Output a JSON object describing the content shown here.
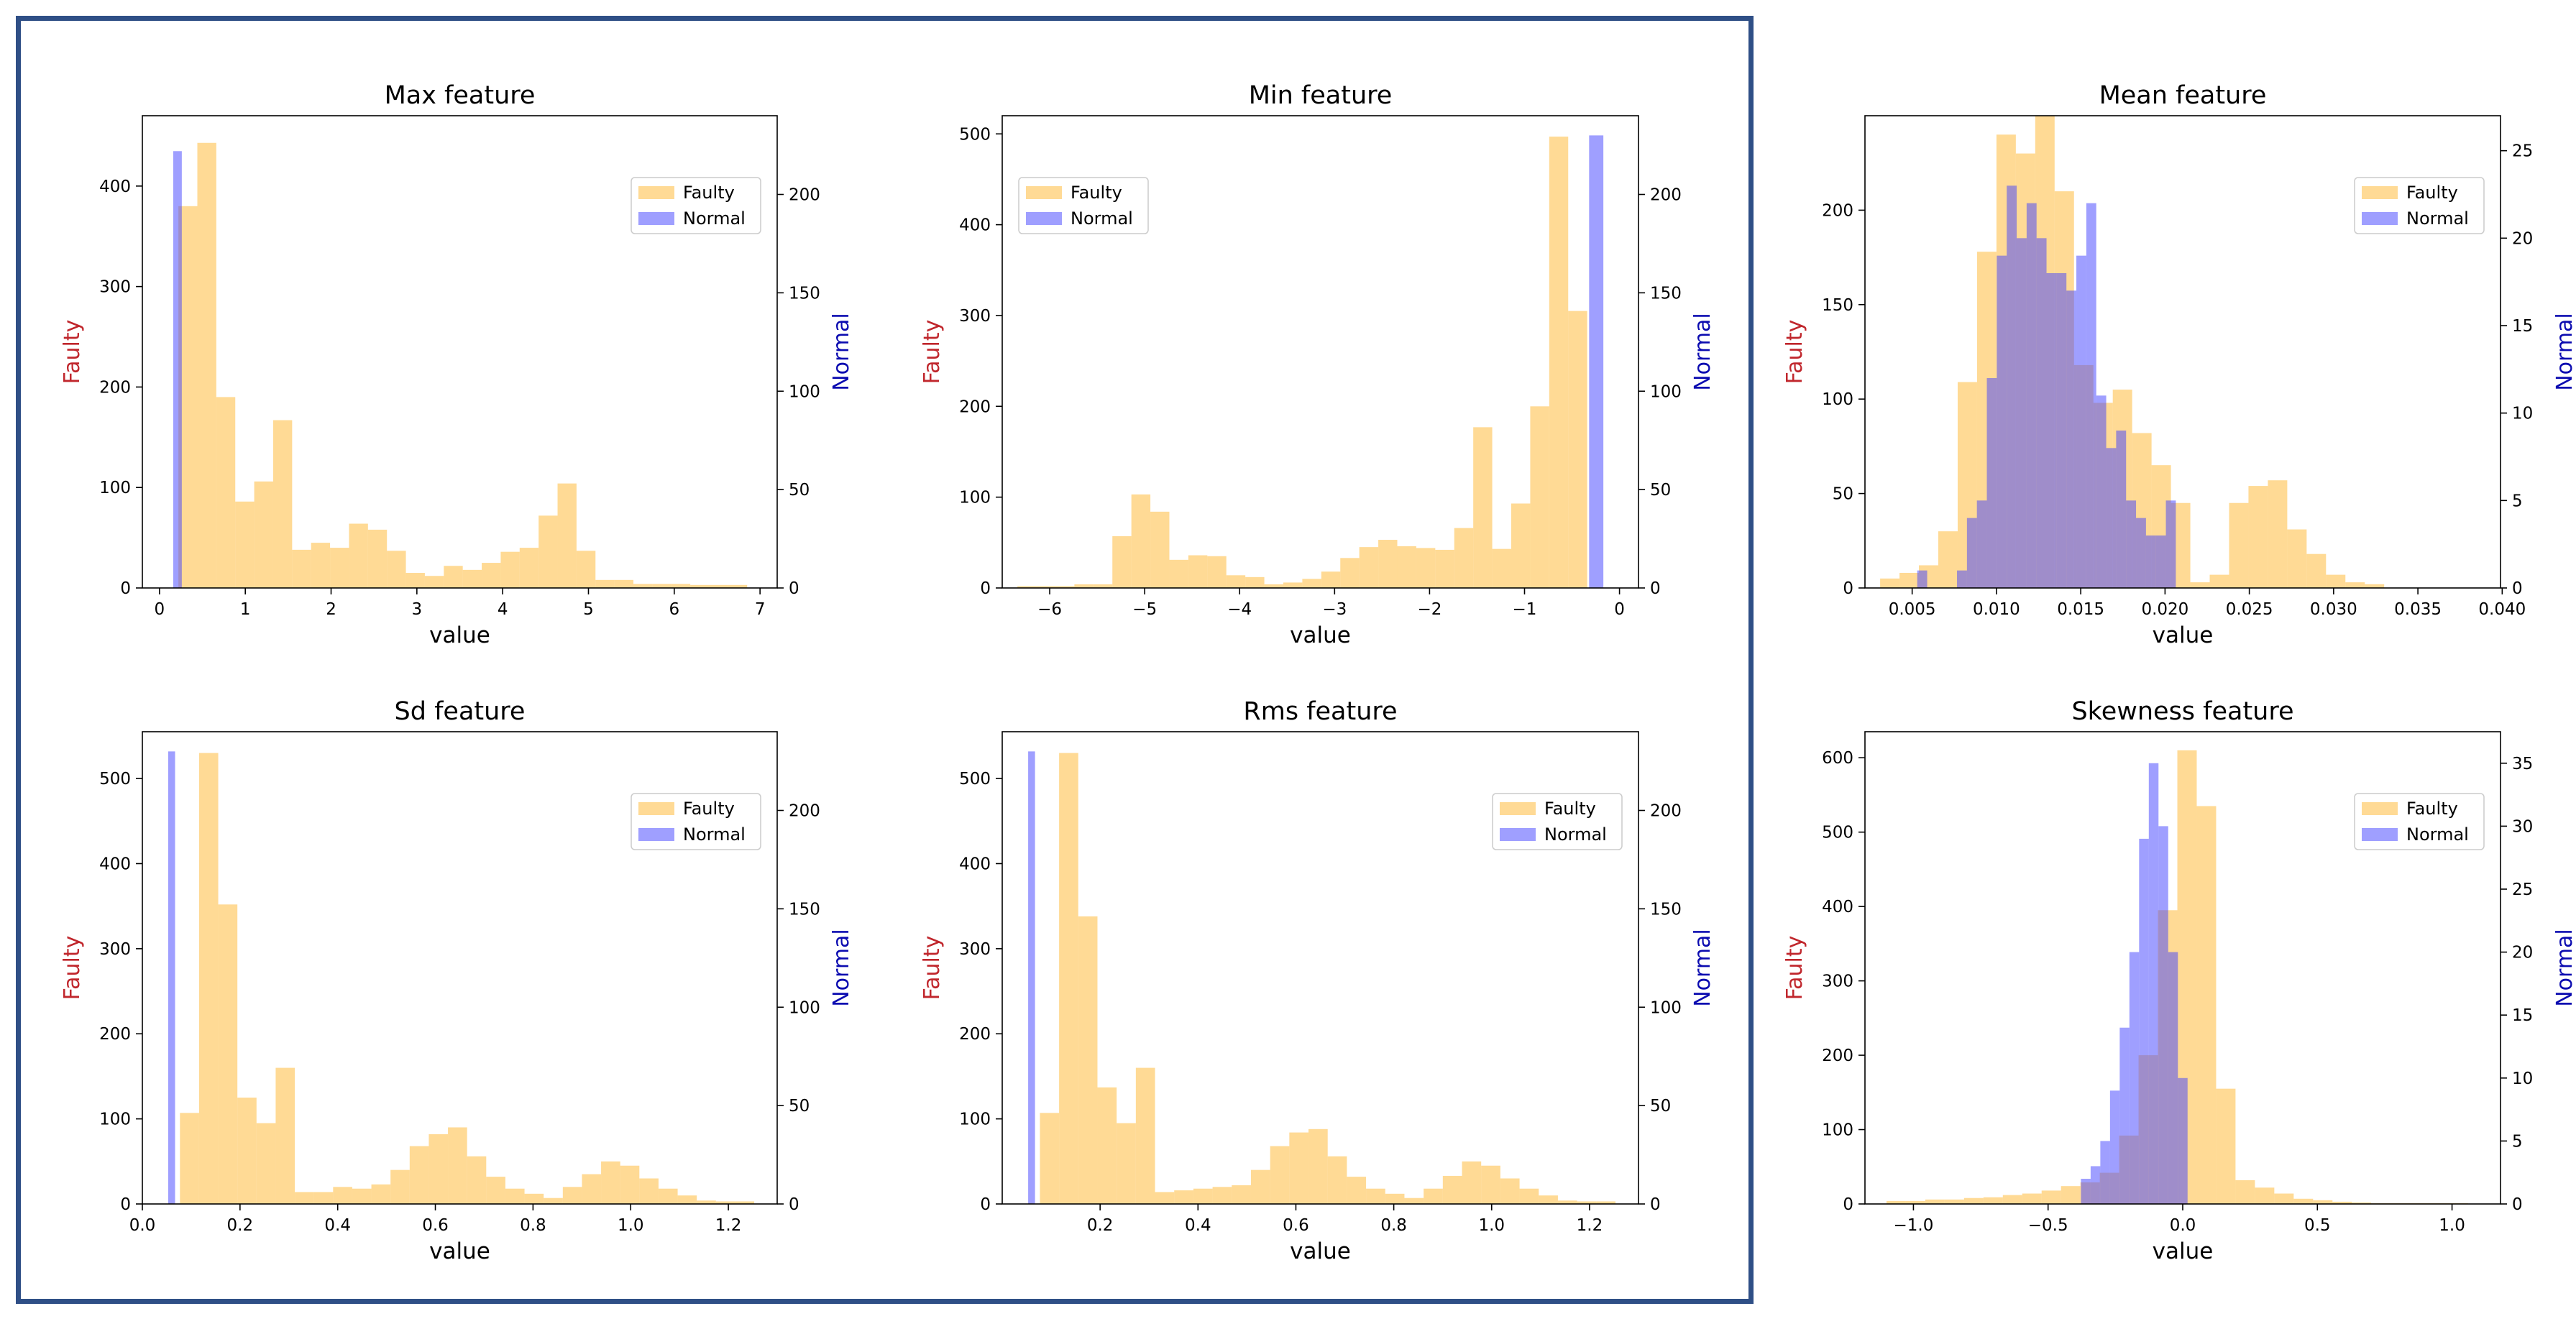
{
  "colors": {
    "faulty": "#ffc14f",
    "normal": "#4040ff",
    "faulty_label": "#c0262c",
    "normal_label": "#0b0bb0",
    "frame": "#2f4f86"
  },
  "legend": {
    "faulty": "Faulty",
    "normal": "Normal"
  },
  "chart_data": [
    {
      "type": "bar",
      "title": "Max feature",
      "xlabel": "value",
      "ylabel_left": "Faulty",
      "ylabel_right": "Normal",
      "legend": "upper right",
      "xlim": [
        -0.2,
        7.2
      ],
      "ylim_left": [
        0,
        470
      ],
      "ylim_right": [
        0,
        240
      ],
      "xticks": [
        0,
        1,
        2,
        3,
        4,
        5,
        6,
        7
      ],
      "yticks_left": [
        0,
        100,
        200,
        300,
        400
      ],
      "yticks_right": [
        0,
        50,
        100,
        150,
        200
      ],
      "faulty": {
        "start": 0.22,
        "width": 0.221,
        "values": [
          380,
          443,
          190,
          86,
          106,
          167,
          38,
          45,
          40,
          64,
          58,
          37,
          15,
          12,
          22,
          18,
          25,
          36,
          40,
          72,
          104,
          37,
          8,
          8,
          4,
          4,
          4,
          3,
          3,
          3
        ]
      },
      "normal": {
        "start": 0.16,
        "width": 0.1,
        "values": [
          222
        ]
      }
    },
    {
      "type": "bar",
      "title": "Min feature",
      "xlabel": "value",
      "ylabel_left": "Faulty",
      "ylabel_right": "Normal",
      "legend": "upper left",
      "xlim": [
        -6.5,
        0.2
      ],
      "ylim_left": [
        0,
        520
      ],
      "ylim_right": [
        0,
        240
      ],
      "xticks": [
        -6,
        -5,
        -4,
        -3,
        -2,
        -1,
        0
      ],
      "yticks_left": [
        0,
        100,
        200,
        300,
        400,
        500
      ],
      "yticks_right": [
        0,
        50,
        100,
        150,
        200
      ],
      "faulty": {
        "start": -6.34,
        "width": 0.2,
        "values": [
          2,
          2,
          2,
          4,
          4,
          57,
          103,
          84,
          31,
          36,
          35,
          14,
          12,
          4,
          6,
          10,
          18,
          33,
          45,
          53,
          46,
          44,
          42,
          66,
          177,
          43,
          93,
          200,
          497,
          305
        ]
      },
      "normal": {
        "start": -0.32,
        "width": 0.15,
        "values": [
          230
        ]
      }
    },
    {
      "type": "bar",
      "title": "Mean feature",
      "xlabel": "value",
      "ylabel_left": "Faulty",
      "ylabel_right": "Normal",
      "legend": "upper right",
      "xlim": [
        0.0022,
        0.0399
      ],
      "ylim_left": [
        0,
        250
      ],
      "ylim_right": [
        0,
        27
      ],
      "xticks": [
        0.005,
        0.01,
        0.015,
        0.02,
        0.025,
        0.03,
        0.035,
        0.04
      ],
      "yticks_left": [
        0,
        50,
        100,
        150,
        200
      ],
      "yticks_right": [
        0,
        5,
        10,
        15,
        20,
        25
      ],
      "faulty": {
        "start": 0.0031,
        "width": 0.00115,
        "values": [
          5,
          8,
          12,
          30,
          109,
          178,
          240,
          230,
          250,
          210,
          118,
          98,
          105,
          82,
          65,
          45,
          3,
          7,
          45,
          54,
          57,
          31,
          18,
          7,
          3,
          2
        ]
      },
      "normal": {
        "start": 0.0053,
        "width": 0.00059,
        "values": [
          1,
          0,
          0,
          0,
          1,
          4,
          5,
          12,
          19,
          23,
          20,
          22,
          20,
          18,
          18,
          17,
          19,
          22,
          11,
          8,
          9,
          5,
          4,
          3,
          3,
          5
        ]
      }
    },
    {
      "type": "bar",
      "title": "Sd feature",
      "xlabel": "value",
      "ylabel_left": "Faulty",
      "ylabel_right": "Normal",
      "legend": "upper right",
      "xlim": [
        0.0,
        1.3
      ],
      "ylim_left": [
        0,
        555
      ],
      "ylim_right": [
        0,
        240
      ],
      "xticks": [
        0.0,
        0.2,
        0.4,
        0.6,
        0.8,
        1.0,
        1.2
      ],
      "yticks_left": [
        0,
        100,
        200,
        300,
        400,
        500
      ],
      "yticks_right": [
        0,
        50,
        100,
        150,
        200
      ],
      "faulty": {
        "start": 0.077,
        "width": 0.0392,
        "values": [
          107,
          530,
          352,
          125,
          95,
          160,
          14,
          14,
          20,
          18,
          23,
          40,
          68,
          82,
          90,
          56,
          32,
          18,
          12,
          7,
          20,
          35,
          50,
          45,
          30,
          18,
          10,
          4,
          3,
          3
        ]
      },
      "normal": {
        "start": 0.053,
        "width": 0.014,
        "values": [
          230
        ]
      }
    },
    {
      "type": "bar",
      "title": "Rms feature",
      "xlabel": "value",
      "ylabel_left": "Faulty",
      "ylabel_right": "Normal",
      "legend": "upper right",
      "xlim": [
        0.0,
        1.3
      ],
      "ylim_left": [
        0,
        555
      ],
      "ylim_right": [
        0,
        240
      ],
      "xticks": [
        0.2,
        0.4,
        0.6,
        0.8,
        1.0,
        1.2
      ],
      "yticks_left": [
        0,
        100,
        200,
        300,
        400,
        500
      ],
      "yticks_right": [
        0,
        50,
        100,
        150,
        200
      ],
      "faulty": {
        "start": 0.077,
        "width": 0.0392,
        "values": [
          107,
          530,
          338,
          137,
          95,
          160,
          14,
          16,
          18,
          20,
          22,
          40,
          68,
          84,
          88,
          56,
          32,
          18,
          12,
          7,
          18,
          33,
          50,
          45,
          30,
          18,
          10,
          4,
          3,
          3
        ]
      },
      "normal": {
        "start": 0.053,
        "width": 0.014,
        "values": [
          230
        ]
      }
    },
    {
      "type": "bar",
      "title": "Skewness feature",
      "xlabel": "value",
      "ylabel_left": "Faulty",
      "ylabel_right": "Normal",
      "legend": "upper right",
      "xlim": [
        -1.18,
        1.18
      ],
      "ylim_left": [
        0,
        635
      ],
      "ylim_right": [
        0,
        37.5
      ],
      "xticks": [
        -1.0,
        -0.5,
        0.0,
        0.5,
        1.0
      ],
      "yticks_left": [
        0,
        100,
        200,
        300,
        400,
        500,
        600
      ],
      "yticks_right": [
        0,
        5,
        10,
        15,
        20,
        25,
        30,
        35
      ],
      "faulty": {
        "start": -1.1,
        "width": 0.072,
        "values": [
          4,
          4,
          6,
          6,
          8,
          9,
          12,
          14,
          18,
          24,
          29,
          42,
          92,
          200,
          395,
          610,
          535,
          155,
          32,
          22,
          14,
          7,
          5,
          3,
          2,
          1,
          1,
          1,
          1,
          1
        ]
      },
      "normal": {
        "start": -0.378,
        "width": 0.036,
        "values": [
          2,
          3,
          5,
          9,
          14,
          20,
          29,
          35,
          30,
          20,
          10
        ]
      }
    }
  ]
}
